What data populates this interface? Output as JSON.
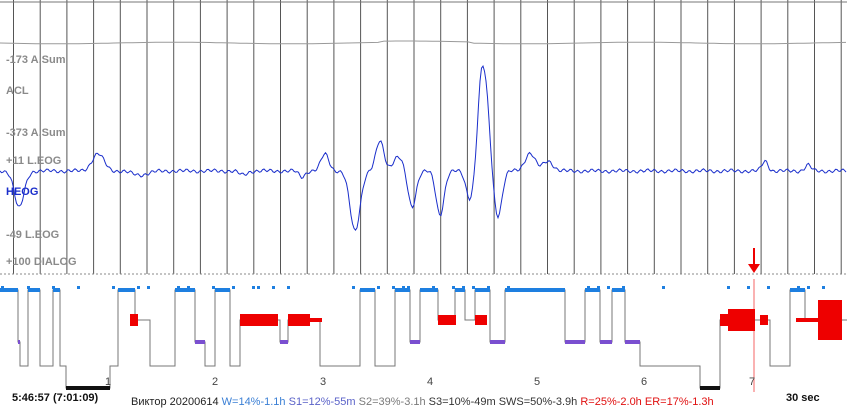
{
  "channels": [
    {
      "id": "asum_scale",
      "label": "-173 A.Sum",
      "color": "#8a8a8a"
    },
    {
      "id": "acl",
      "label": "ACL",
      "color": "#8a8a8a"
    },
    {
      "id": "asum_scale2",
      "label": "-373 A.Sum",
      "color": "#8a8a8a"
    },
    {
      "id": "leog",
      "label": "+11 L.EOG",
      "color": "#8a8a8a"
    },
    {
      "id": "heog",
      "label": "HEOG",
      "color": "#1a2ecb"
    },
    {
      "id": "leog_low",
      "label": "-49 L.EOG",
      "color": "#8a8a8a"
    },
    {
      "id": "dialog",
      "label": "+100 DIALOG",
      "color": "#8a8a8a"
    }
  ],
  "hypnogram": {
    "hour_markers": [
      "1",
      "2",
      "3",
      "4",
      "5",
      "6",
      "7"
    ],
    "stage_colors": {
      "wake": "#1e7fe0",
      "rem": "#ee0000",
      "s1": "#7a4fd0",
      "sleep": "#777777",
      "deep": "#111111"
    }
  },
  "status": {
    "time": "5:46:57 (7:01:09)",
    "recording_name": "Виктор 20200614",
    "stats": {
      "w": "W=14%-1.1h",
      "s1": "S1=12%-55m",
      "s2": "S2=39%-3.1h",
      "s3": "S3=10%-49m",
      "sws": "SWS=50%-3.9h",
      "r": "R=25%-2.0h",
      "er": "ER=17%-1.3h"
    },
    "epoch": "30 sec"
  },
  "colors": {
    "signal": "#1a2ecb",
    "grid": "#555555",
    "acl_trace": "#9a9a9a",
    "marker": "#ee0000"
  }
}
